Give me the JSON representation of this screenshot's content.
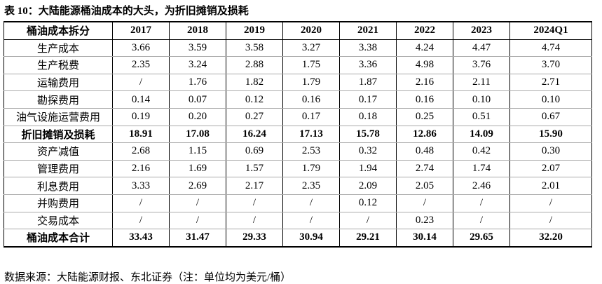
{
  "title": "表 10：大陆能源桶油成本的大头，为折旧摊销及损耗",
  "table": {
    "header": [
      "桶油成本拆分",
      "2017",
      "2018",
      "2019",
      "2020",
      "2021",
      "2022",
      "2023",
      "2024Q1"
    ],
    "rows": [
      [
        "生产成本",
        "3.66",
        "3.59",
        "3.58",
        "3.27",
        "3.38",
        "4.24",
        "4.47",
        "4.74"
      ],
      [
        "生产税费",
        "2.35",
        "3.24",
        "2.88",
        "1.75",
        "3.36",
        "4.98",
        "3.76",
        "3.70"
      ],
      [
        "运输费用",
        "/",
        "1.76",
        "1.82",
        "1.79",
        "1.87",
        "2.16",
        "2.11",
        "2.71"
      ],
      [
        "勘探费用",
        "0.14",
        "0.07",
        "0.12",
        "0.16",
        "0.17",
        "0.16",
        "0.10",
        "0.10"
      ],
      [
        "油气设施运营费用",
        "0.19",
        "0.20",
        "0.27",
        "0.17",
        "0.18",
        "0.25",
        "0.51",
        "0.67"
      ],
      [
        "折旧摊销及损耗",
        "18.91",
        "17.08",
        "16.24",
        "17.13",
        "15.78",
        "12.86",
        "14.09",
        "15.90"
      ],
      [
        "资产减值",
        "2.68",
        "1.15",
        "0.69",
        "2.53",
        "0.32",
        "0.48",
        "0.42",
        "0.30"
      ],
      [
        "管理费用",
        "2.16",
        "1.69",
        "1.57",
        "1.79",
        "1.94",
        "2.74",
        "1.74",
        "2.07"
      ],
      [
        "利息费用",
        "3.33",
        "2.69",
        "2.17",
        "2.35",
        "2.09",
        "2.05",
        "2.46",
        "2.01"
      ],
      [
        "并购费用",
        "/",
        "/",
        "/",
        "/",
        "0.12",
        "/",
        "/",
        "/"
      ],
      [
        "交易成本",
        "/",
        "/",
        "/",
        "/",
        "/",
        "0.23",
        "/",
        "/"
      ],
      [
        "桶油成本合计",
        "33.43",
        "31.47",
        "29.33",
        "30.94",
        "29.21",
        "30.14",
        "29.65",
        "32.20"
      ]
    ]
  },
  "source": "数据来源：大陆能源财报、东北证券（注：单位均为美元/桶）"
}
